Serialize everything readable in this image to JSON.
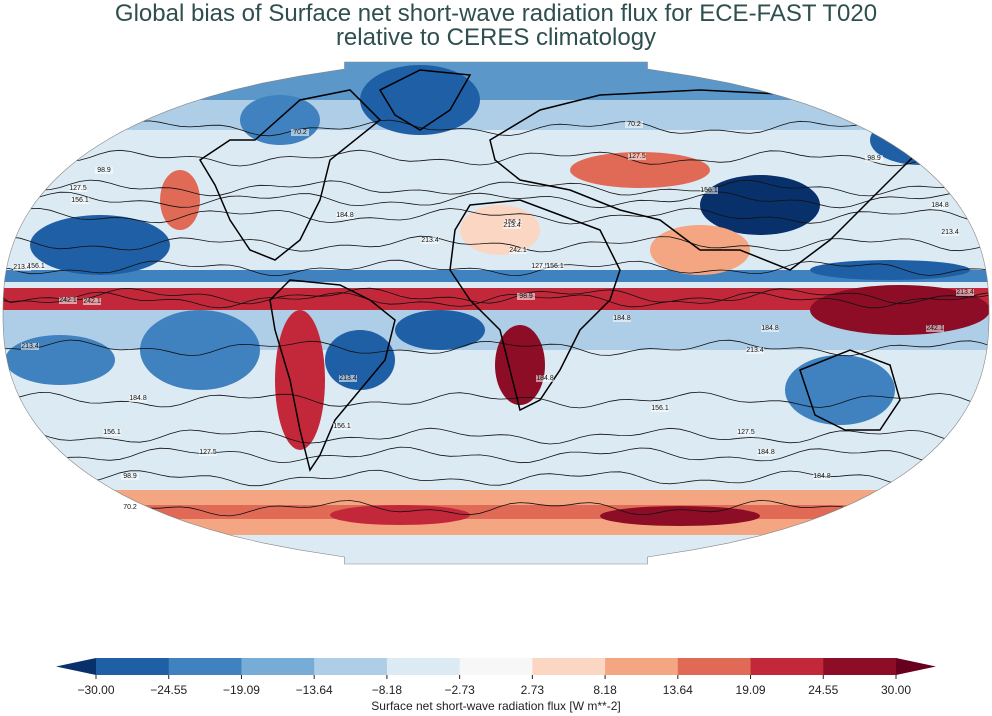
{
  "figure": {
    "title_line1": "Global bias of Surface net short-wave radiation flux for ECE-FAST T020",
    "title_line2": "relative to CERES climatology",
    "projection": "Robinson",
    "contour_labels": [
      "70.2",
      "98.9",
      "127.5",
      "156.1",
      "184.8",
      "213.4",
      "242.1",
      "213.4",
      "184.8",
      "156.1",
      "127.5",
      "98.9",
      "70.2",
      "70.2",
      "98.9",
      "127.5",
      "156.1",
      "184.8",
      "213.4",
      "213.4",
      "242.1",
      "213.4",
      "184.8",
      "156.1",
      "127.5",
      "98.9",
      "184.8",
      "156.1",
      "127.5",
      "184.8",
      "184.8",
      "156.1",
      "213.4",
      "242.1",
      "156.1",
      "213.4",
      "242.1",
      "213.4",
      "184.8",
      "156.1"
    ]
  },
  "colorbar": {
    "label": "Surface net short-wave radiation flux [W m**-2]",
    "ticks": [
      "−30.00",
      "−24.55",
      "−19.09",
      "−13.64",
      "−8.18",
      "−2.73",
      "2.73",
      "8.18",
      "13.64",
      "19.09",
      "24.55",
      "30.00"
    ],
    "colors": [
      "#08306b",
      "#1f5fa6",
      "#3f82bf",
      "#76acd6",
      "#aecde6",
      "#dceaf4",
      "#f7f7f7",
      "#fbd7c3",
      "#f4a582",
      "#e06a55",
      "#c3283a",
      "#8c0d25",
      "#67001f"
    ],
    "extend": "both"
  }
}
